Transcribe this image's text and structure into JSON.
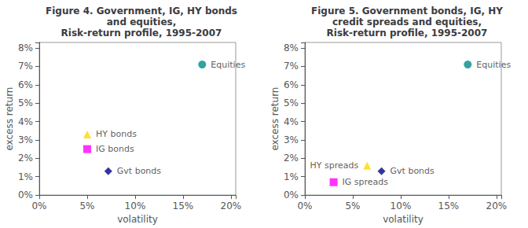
{
  "chart_data": [
    {
      "type": "scatter",
      "title": "Figure 4. Government, IG, HY bonds\nand equities,\nRisk-return profile, 1995-2007",
      "xlabel": "volatility",
      "ylabel": "excess return",
      "xlim": [
        0.0,
        0.205
      ],
      "ylim": [
        0.0,
        0.083
      ],
      "xticks": [
        {
          "value": 0.0,
          "label": "0%"
        },
        {
          "value": 0.05,
          "label": "5%"
        },
        {
          "value": 0.1,
          "label": "10%"
        },
        {
          "value": 0.15,
          "label": "15%"
        },
        {
          "value": 0.2,
          "label": "20%"
        }
      ],
      "yticks": [
        {
          "value": 0.0,
          "label": "0%"
        },
        {
          "value": 0.01,
          "label": "1%"
        },
        {
          "value": 0.02,
          "label": "2%"
        },
        {
          "value": 0.03,
          "label": "3%"
        },
        {
          "value": 0.04,
          "label": "4%"
        },
        {
          "value": 0.05,
          "label": "5%"
        },
        {
          "value": 0.06,
          "label": "6%"
        },
        {
          "value": 0.07,
          "label": "7%"
        },
        {
          "value": 0.08,
          "label": "8%"
        }
      ],
      "grid": false,
      "series": [
        {
          "name": "Equities",
          "color": "#008B8B",
          "marker": "o",
          "x": [
            0.17
          ],
          "values": [
            0.071
          ]
        },
        {
          "name": "HY bonds",
          "color": "#FFD700",
          "marker": "^",
          "x": [
            0.05
          ],
          "values": [
            0.033
          ]
        },
        {
          "name": "IG bonds",
          "color": "#FF00FF",
          "marker": "s",
          "x": [
            0.05
          ],
          "values": [
            0.025
          ]
        },
        {
          "name": "Gvt bonds",
          "color": "#00008B",
          "marker": "D",
          "x": [
            0.072
          ],
          "values": [
            0.013
          ]
        }
      ]
    },
    {
      "type": "scatter",
      "title": "Figure 5. Government bonds, IG, HY\ncredit spreads and equities,\nRisk-return profile, 1995-2007",
      "xlabel": "volatility",
      "ylabel": "excess return",
      "xlim": [
        0.0,
        0.205
      ],
      "ylim": [
        0.0,
        0.083
      ],
      "xticks": [
        {
          "value": 0.0,
          "label": "0%"
        },
        {
          "value": 0.05,
          "label": "5%"
        },
        {
          "value": 0.1,
          "label": "10%"
        },
        {
          "value": 0.15,
          "label": "15%"
        },
        {
          "value": 0.2,
          "label": "20%"
        }
      ],
      "yticks": [
        {
          "value": 0.0,
          "label": "0%"
        },
        {
          "value": 0.01,
          "label": "1%"
        },
        {
          "value": 0.02,
          "label": "2%"
        },
        {
          "value": 0.03,
          "label": "3%"
        },
        {
          "value": 0.04,
          "label": "4%"
        },
        {
          "value": 0.05,
          "label": "5%"
        },
        {
          "value": 0.06,
          "label": "6%"
        },
        {
          "value": 0.07,
          "label": "7%"
        },
        {
          "value": 0.08,
          "label": "8%"
        }
      ],
      "grid": false,
      "series": [
        {
          "name": "Equities",
          "color": "#008B8B",
          "marker": "o",
          "x": [
            0.17
          ],
          "values": [
            0.071
          ]
        },
        {
          "name": "HY spreads",
          "color": "#FFD700",
          "marker": "^",
          "x": [
            0.065
          ],
          "values": [
            0.016
          ]
        },
        {
          "name": "IG spreads",
          "color": "#FF00FF",
          "marker": "s",
          "x": [
            0.03
          ],
          "values": [
            0.007
          ]
        },
        {
          "name": "Gvt bonds",
          "color": "#00008B",
          "marker": "D",
          "x": [
            0.08
          ],
          "values": [
            0.013
          ]
        }
      ]
    }
  ]
}
